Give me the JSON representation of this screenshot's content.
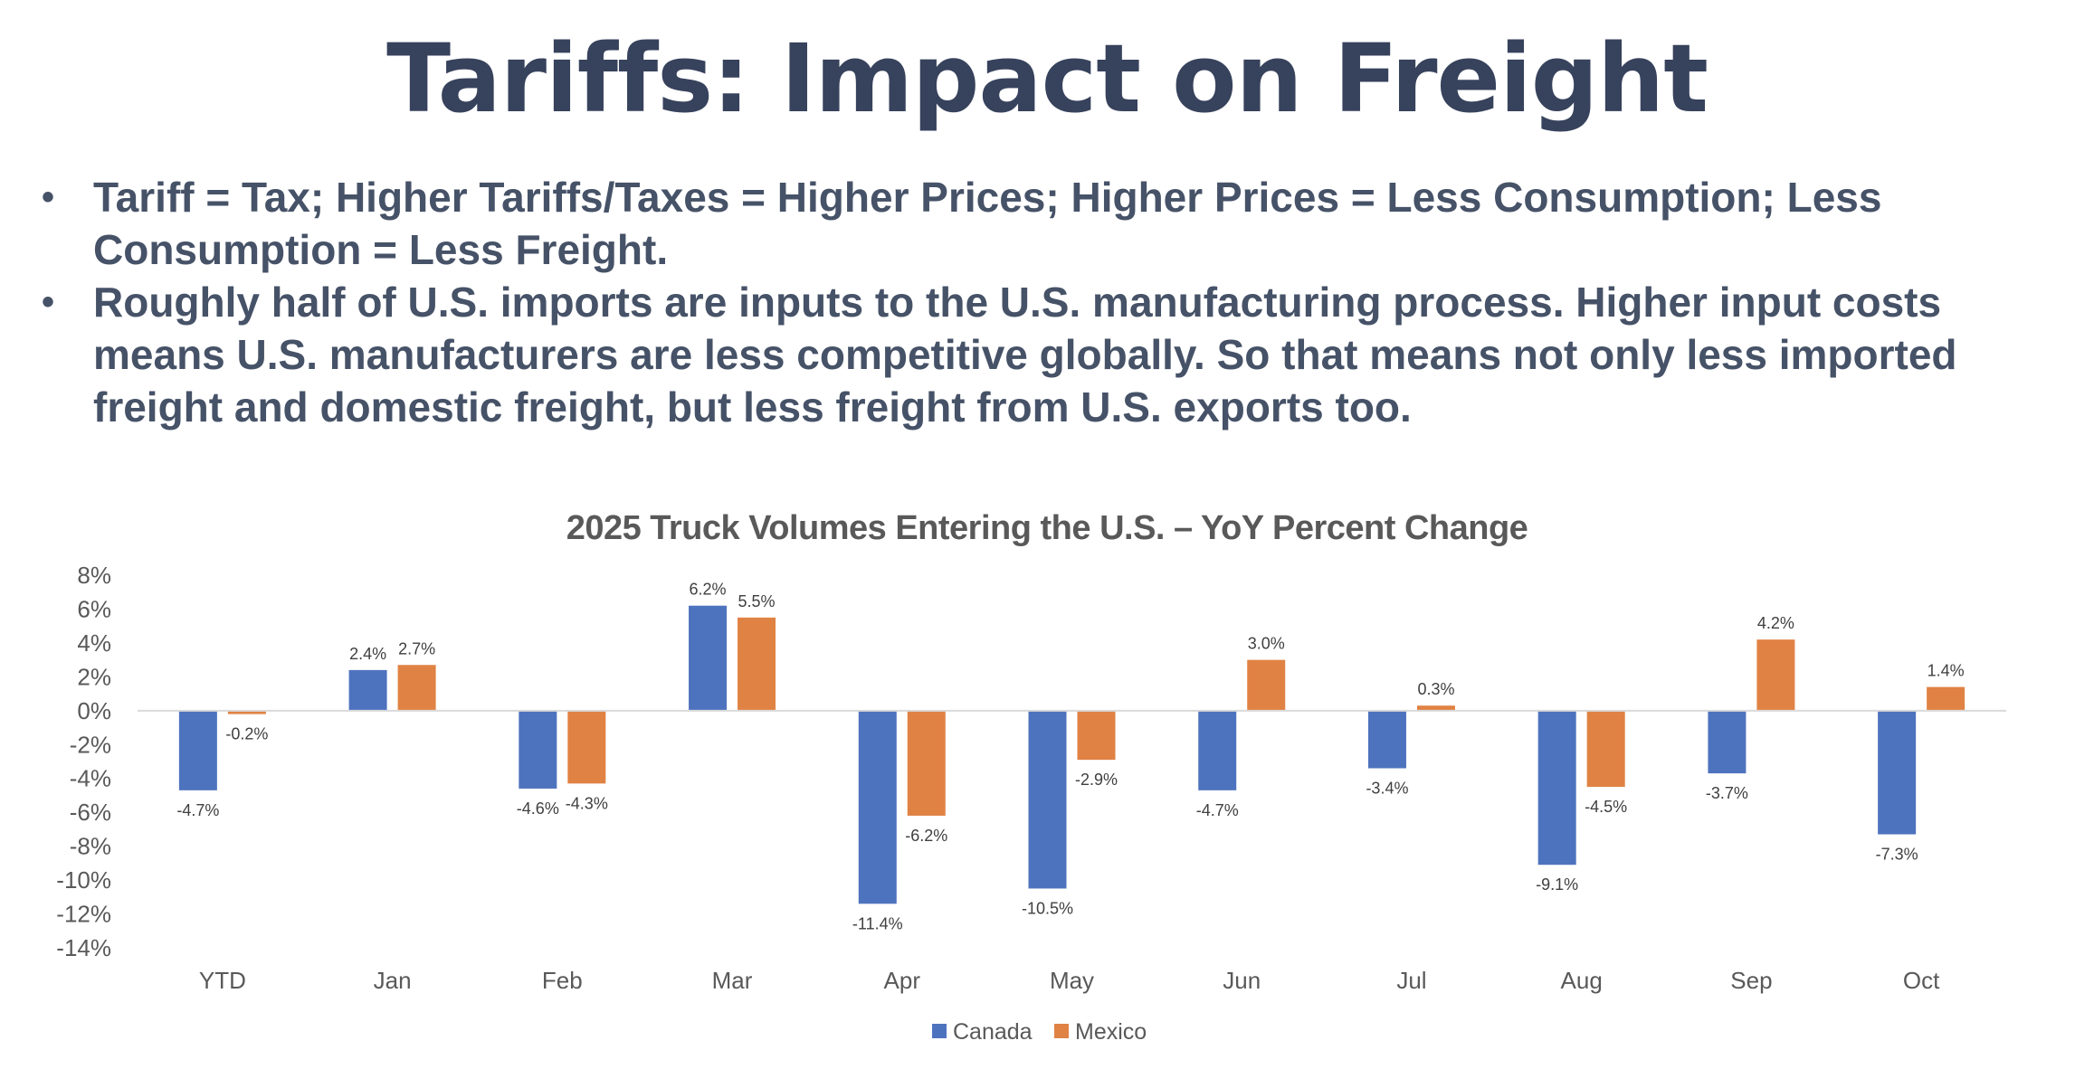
{
  "slide": {
    "title": "Tariffs: Impact on Freight",
    "bullets": [
      {
        "lines": [
          "Tariff = Tax; Higher Tariffs/Taxes = Higher Prices; Higher Prices = Less Consumption; Less",
          "Consumption = Less Freight."
        ]
      },
      {
        "lines": [
          "Roughly half of U.S. imports are inputs to the U.S. manufacturing process. Higher input costs",
          "means U.S. manufacturers are less competitive globally. So that means not only less imported",
          "freight and domestic freight, but less freight from U.S. exports too."
        ]
      }
    ],
    "bullet_glyph": "•"
  },
  "chart_data": {
    "type": "bar",
    "title": "2025 Truck Volumes Entering the U.S. – YoY Percent Change",
    "xlabel": "",
    "ylabel": "",
    "categories": [
      "YTD",
      "Jan",
      "Feb",
      "Mar",
      "Apr",
      "May",
      "Jun",
      "Jul",
      "Aug",
      "Sep",
      "Oct"
    ],
    "series": [
      {
        "name": "Canada",
        "color": "#4E73BE",
        "values": [
          -4.7,
          2.4,
          -4.6,
          6.2,
          -11.4,
          -10.5,
          -4.7,
          -3.4,
          -9.1,
          -3.7,
          -7.3
        ],
        "labels": [
          "-4.7%",
          "2.4%",
          "-4.6%",
          "6.2%",
          "-11.4%",
          "-10.5%",
          "-4.7%",
          "-3.4%",
          "-9.1%",
          "-3.7%",
          "-7.3%"
        ]
      },
      {
        "name": "Mexico",
        "color": "#E08244",
        "values": [
          -0.2,
          2.7,
          -4.3,
          5.5,
          -6.2,
          -2.9,
          3.0,
          0.3,
          -4.5,
          4.2,
          1.4
        ],
        "labels": [
          "-0.2%",
          "2.7%",
          "-4.3%",
          "5.5%",
          "-6.2%",
          "-2.9%",
          "3.0%",
          "0.3%",
          "-4.5%",
          "4.2%",
          "1.4%"
        ]
      }
    ],
    "ylim": [
      -14,
      8
    ],
    "yticks": [
      8,
      6,
      4,
      2,
      0,
      -2,
      -4,
      -6,
      -8,
      -10,
      -12,
      -14
    ],
    "ytick_labels": [
      "8%",
      "6%",
      "4%",
      "2%",
      "0%",
      "-2%",
      "-4%",
      "-6%",
      "-8%",
      "-10%",
      "-12%",
      "-14%"
    ],
    "unit": "%",
    "grid": false,
    "zero_line_color": "#D9D9D9",
    "legend_position": "bottom-center",
    "legend": [
      "Canada",
      "Mexico"
    ]
  }
}
